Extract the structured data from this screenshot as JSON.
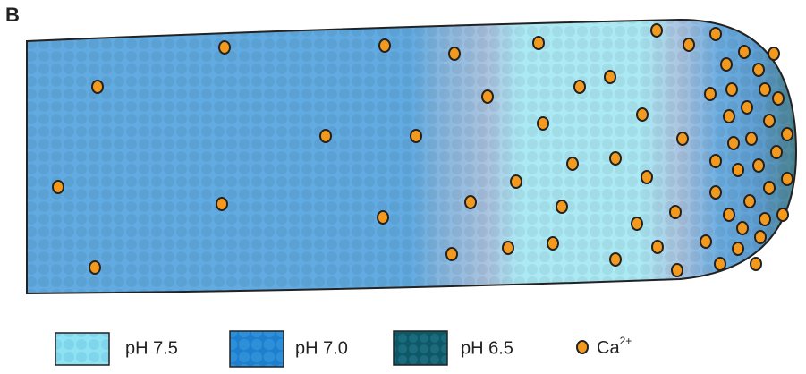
{
  "panel_label": "B",
  "legend": [
    {
      "label": "pH 7.5"
    },
    {
      "label": "pH 7.0"
    },
    {
      "label": "pH 6.5"
    },
    {
      "label": "Ca",
      "superscript": "2+"
    }
  ]
}
